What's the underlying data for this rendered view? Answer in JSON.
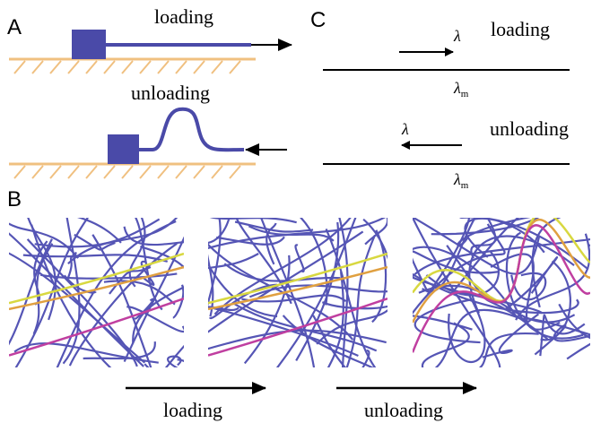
{
  "panel_a": {
    "label": "A",
    "loading": "loading",
    "unloading": "unloading"
  },
  "panel_b": {
    "label": "B",
    "loading": "loading",
    "unloading": "unloading"
  },
  "panel_c": {
    "label": "C",
    "top": {
      "lambda": "λ",
      "caption": "loading",
      "lambda_m": {
        "symbol": "λ",
        "sub": "m"
      }
    },
    "bottom": {
      "lambda": "λ",
      "caption": "unloading",
      "lambda_m": {
        "symbol": "λ",
        "sub": "m"
      }
    }
  }
}
